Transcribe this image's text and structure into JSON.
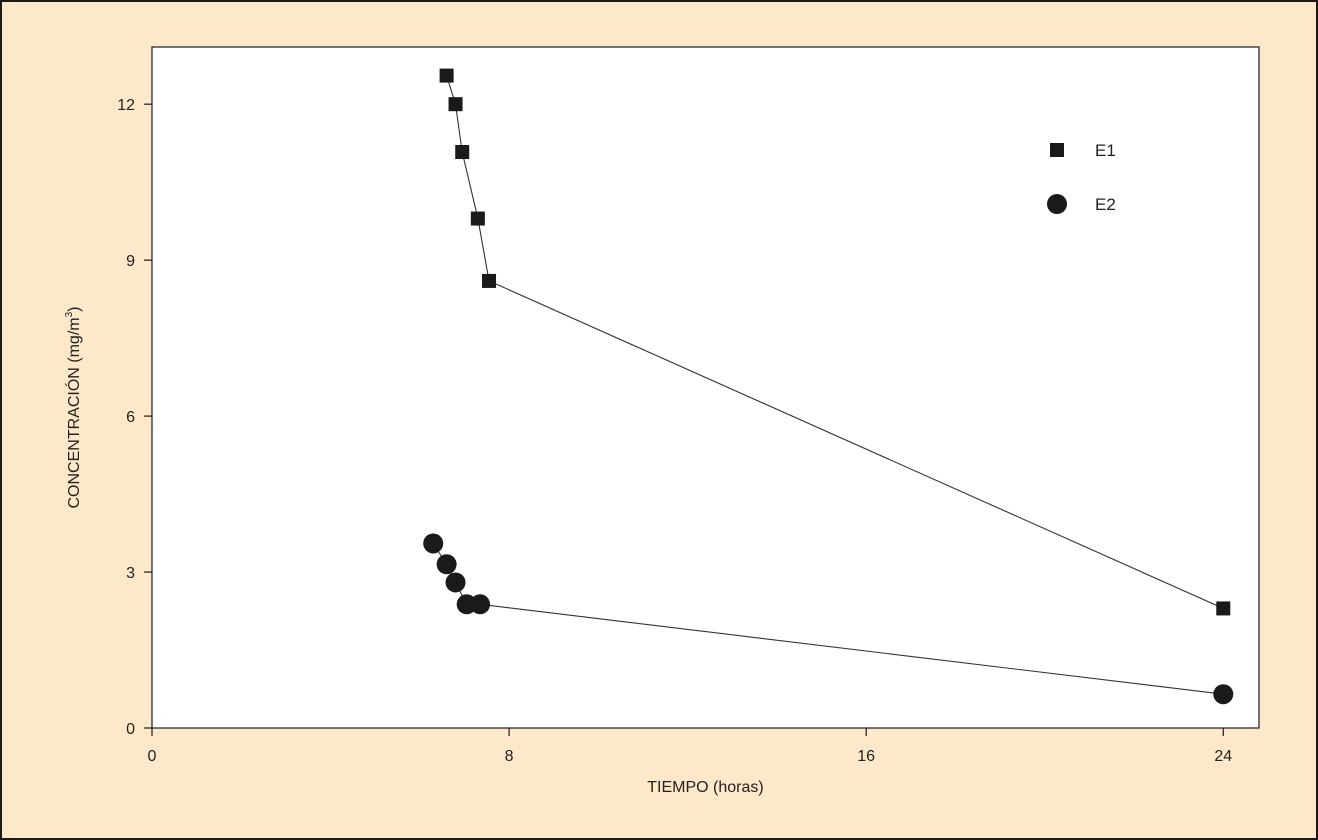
{
  "colors": {
    "background": "#fde9c9",
    "plot_area": "#ffffff",
    "ink": "#1a1a1a",
    "line": "#333333"
  },
  "chart_data": {
    "type": "line",
    "title": "",
    "xlabel": "TIEMPO (horas)",
    "ylabel_main": "CONCENTRACIÓN (mg/m",
    "ylabel_sup": "3",
    "ylabel_tail": ")",
    "xlim": [
      0,
      24.8
    ],
    "ylim": [
      0,
      13.1
    ],
    "xticks": [
      0,
      8,
      16,
      24
    ],
    "xtick_labels": [
      "0",
      "8",
      "16",
      "24"
    ],
    "yticks": [
      0,
      3,
      6,
      9,
      12
    ],
    "ytick_labels": [
      "0",
      "3",
      "6",
      "9",
      "12"
    ],
    "grid": false,
    "legend_position": "top-right",
    "series": [
      {
        "name": "E1",
        "marker": "square",
        "x": [
          6.6,
          6.8,
          6.95,
          7.3,
          7.55,
          24.0
        ],
        "y": [
          12.55,
          12.0,
          11.08,
          9.8,
          8.6,
          2.3
        ]
      },
      {
        "name": "E2",
        "marker": "circle",
        "x": [
          6.3,
          6.6,
          6.8,
          7.05,
          7.35,
          24.0
        ],
        "y": [
          3.55,
          3.15,
          2.8,
          2.38,
          2.38,
          0.65
        ]
      }
    ]
  }
}
